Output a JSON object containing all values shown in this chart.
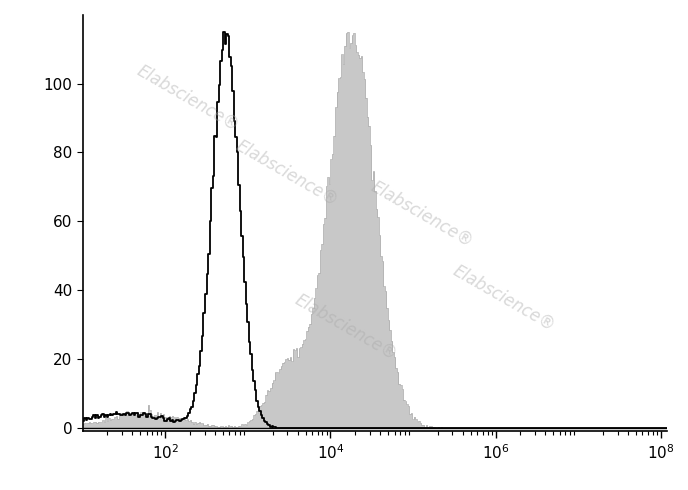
{
  "xlim": [
    10,
    120000000.0
  ],
  "ylim": [
    -1,
    120
  ],
  "yticks": [
    0,
    20,
    40,
    60,
    80,
    100
  ],
  "xtick_positions": [
    100,
    10000,
    1000000,
    100000000
  ],
  "isotype_color": "#000000",
  "cd83_fill_color": "#c8c8c8",
  "cd83_edge_color": "#aaaaaa",
  "background_color": "#ffffff",
  "fig_width": 6.88,
  "fig_height": 4.9,
  "dpi": 100,
  "isotype_seed": 12,
  "cd83_seed": 7,
  "isotype_peak_mean_log": 6.3,
  "isotype_peak_sigma": 0.38,
  "isotype_n": 80000,
  "cd83_peak_mean_log": 9.8,
  "cd83_peak_sigma": 0.65,
  "cd83_n": 80000,
  "n_bins": 400,
  "watermark_color": "#aaaaaa",
  "watermark_alpha": 0.45,
  "watermark_fontsize": 12,
  "watermark_rotation": -30
}
